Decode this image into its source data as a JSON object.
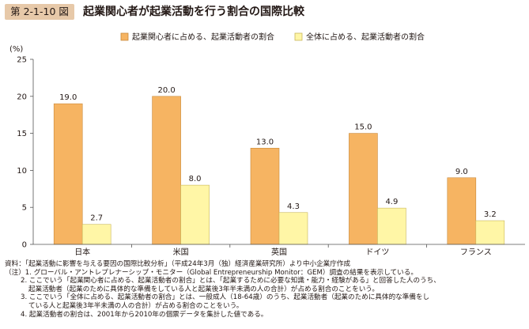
{
  "figure": {
    "number": "第 2-1-10 図",
    "title": "起業関心者が起業活動を行う割合の国際比較"
  },
  "colors": {
    "series1": "#f6b462",
    "series1_stroke": "#c8893a",
    "series2": "#fff6a6",
    "series2_stroke": "#c9b65a",
    "badge": "#e7c9a9",
    "axis": "#555555"
  },
  "chart_data": {
    "type": "bar",
    "categories": [
      "日本",
      "米国",
      "英国",
      "ドイツ",
      "フランス"
    ],
    "series": [
      {
        "name": "起業関心者に占める、起業活動者の割合",
        "values": [
          19.0,
          20.0,
          13.0,
          15.0,
          9.0
        ]
      },
      {
        "name": "全体に占める、起業活動者の割合",
        "values": [
          2.7,
          8.0,
          4.3,
          4.9,
          3.2
        ]
      }
    ],
    "yunit": "(%)",
    "ylim": [
      0,
      25
    ],
    "yticks": [
      "0",
      "5",
      "10",
      "15",
      "20",
      "25"
    ],
    "grid": false,
    "legend": "top"
  },
  "notes": {
    "source": "資料：「起業活動に影響を与える要因の国際比較分析」（平成24年3月（独）経済産業研究所）より中小企業庁作成",
    "note1": "（注）1. グローバル・アントレプレナーシップ・モニター（Global Entrepreneurship Monitor：GEM）調査の結果を表示している。",
    "note2a": "2. ここでいう「起業関心者に占める、起業活動者の割合」とは、「起業するために必要な知識・能力・経験がある」と回答した人のうち、",
    "note2b": "起業活動者（起業のために具体的な準備をしている人と起業後3年半未満の人の合計）が占める割合のことをいう。",
    "note3a": "3. ここでいう「全体に占める、起業活動者の割合」とは、一般成人（18-64歳）のうち、起業活動者（起業のために具体的な準備をし",
    "note3b": "ている人と起業後3年半未満の人の合計）が占める割合のことをいう。",
    "note4": "4. 起業活動者の割合は、2001年から2010年の個票データを集計した値である。"
  }
}
